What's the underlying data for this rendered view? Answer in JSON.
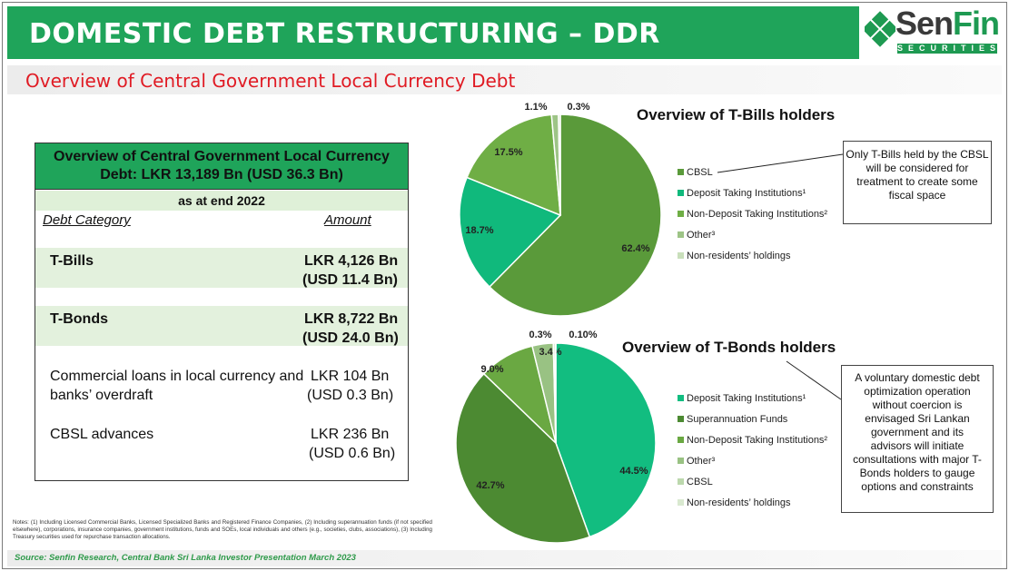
{
  "header": {
    "title": "DOMESTIC DEBT RESTRUCTURING – DDR",
    "subtitle": "Overview of Central Government Local Currency Debt"
  },
  "logo": {
    "text_a": "Sen",
    "text_b": "Fin",
    "text_c": "SECURITIES"
  },
  "table": {
    "title": "Overview of Central Government Local Currency Debt: LKR 13,189 Bn (USD 36.3 Bn)",
    "as_at": "as at end 2022",
    "col_category": "Debt Category",
    "col_amount": "Amount",
    "rows": [
      {
        "category": "T-Bills",
        "amount_lkr": "LKR 4,126 Bn",
        "amount_usd": "(USD 11.4 Bn)"
      },
      {
        "category": "T-Bonds",
        "amount_lkr": "LKR 8,722 Bn",
        "amount_usd": "(USD 24.0 Bn)"
      },
      {
        "category": "Commercial loans in local currency and banks’ overdraft",
        "amount_lkr": "LKR 104 Bn",
        "amount_usd": "(USD 0.3 Bn)"
      },
      {
        "category": "CBSL advances",
        "amount_lkr": "LKR 236 Bn",
        "amount_usd": "(USD 0.6 Bn)"
      }
    ]
  },
  "notes": "Notes: (1) Including Licensed Commercial Banks, Licensed Specialized Banks and Registered Finance Companies, (2) Including superannuation funds (if not specified elsewhere), corporations, insurance companies, government institutions, funds and SOEs, local individuals and others (e.g., societies, clubs, associations), (3) Including Treasury securities used for repurchase transaction allocations.",
  "source": "Source: Senfin Research, Central Bank Sri Lanka Investor Presentation March 2023",
  "callouts": {
    "tbills": "Only T-Bills held by the CBSL will be considered for treatment to create some fiscal space",
    "tbonds": "A voluntary domestic debt optimization operation without coercion is envisaged Sri Lankan government and its advisors will initiate consultations with major T-Bonds holders to gauge options and constraints"
  },
  "chart_data": [
    {
      "type": "pie",
      "title": "Overview of T-Bills holders",
      "series": [
        {
          "name": "CBSL",
          "value": 62.4,
          "label": "62.4%",
          "color": "#5a9a3a"
        },
        {
          "name": "Deposit Taking Institutions¹",
          "value": 18.7,
          "label": "18.7%",
          "color": "#10b97c"
        },
        {
          "name": "Non-Deposit Taking Institutions²",
          "value": 17.5,
          "label": "17.5%",
          "color": "#6fae45"
        },
        {
          "name": "Other³",
          "value": 1.1,
          "label": "1.1%",
          "color": "#9dc486"
        },
        {
          "name": "Non-residents’ holdings",
          "value": 0.3,
          "label": "0.3%",
          "color": "#c9dfbb"
        }
      ]
    },
    {
      "type": "pie",
      "title": "Overview of T-Bonds holders",
      "series": [
        {
          "name": "Deposit Taking Institutions¹",
          "value": 44.5,
          "label": "44.5%",
          "color": "#12bd80"
        },
        {
          "name": "Superannuation Funds",
          "value": 42.7,
          "label": "42.7%",
          "color": "#4c8a32"
        },
        {
          "name": "Non-Deposit Taking Institutions²",
          "value": 9.0,
          "label": "9.0%",
          "color": "#6aa842"
        },
        {
          "name": "Other³",
          "value": 3.4,
          "label": "3.4%",
          "color": "#99c283"
        },
        {
          "name": "CBSL",
          "value": 0.3,
          "label": "0.3%",
          "color": "#bcd8ad"
        },
        {
          "name": "Non-residents’ holdings",
          "value": 0.1,
          "label": "0.10%",
          "color": "#d9e9d0"
        }
      ]
    }
  ]
}
